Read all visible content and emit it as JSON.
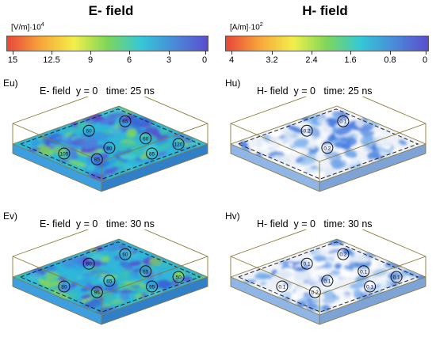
{
  "headers": {
    "e": "E- field",
    "h": "H- field"
  },
  "colorbars": {
    "e": {
      "unit_base": "[V/m]·10",
      "unit_exp": "4",
      "ticks": [
        "15",
        "12.5",
        "9",
        "6",
        "3",
        "0"
      ]
    },
    "h": {
      "unit_base": "[A/m]·10",
      "unit_exp": "2",
      "ticks": [
        "4",
        "3.2",
        "2.4",
        "1.6",
        "0.8",
        "0"
      ]
    },
    "colors": [
      "#e8463a",
      "#f7a63a",
      "#f2ef4a",
      "#7dd65a",
      "#34c8d8",
      "#4a8ad8",
      "#5a4ed0"
    ]
  },
  "panels": [
    {
      "id": "Eu)",
      "title": "E- field  y = 0   time: 25 ns",
      "field": "e",
      "labels": [
        "60",
        "65",
        "80",
        "60",
        "105",
        "85",
        "85",
        "120"
      ]
    },
    {
      "id": "Hu)",
      "title": "H- field  y = 0   time: 25 ns",
      "field": "h",
      "labels": [
        "0.2",
        "0.1",
        "0.2"
      ]
    },
    {
      "id": "Ev)",
      "title": "E- field  y = 0   time: 30 ns",
      "field": "e",
      "labels": [
        "60",
        "60",
        "65",
        "65",
        "80",
        "95",
        "95",
        "50"
      ]
    },
    {
      "id": "Hv)",
      "title": "H- field  y = 0   time: 30 ns",
      "field": "h",
      "labels": [
        "0.1",
        "0.2",
        "0.1",
        "0.1",
        "0.1",
        "0.2",
        "0.1",
        "0.1"
      ]
    }
  ]
}
